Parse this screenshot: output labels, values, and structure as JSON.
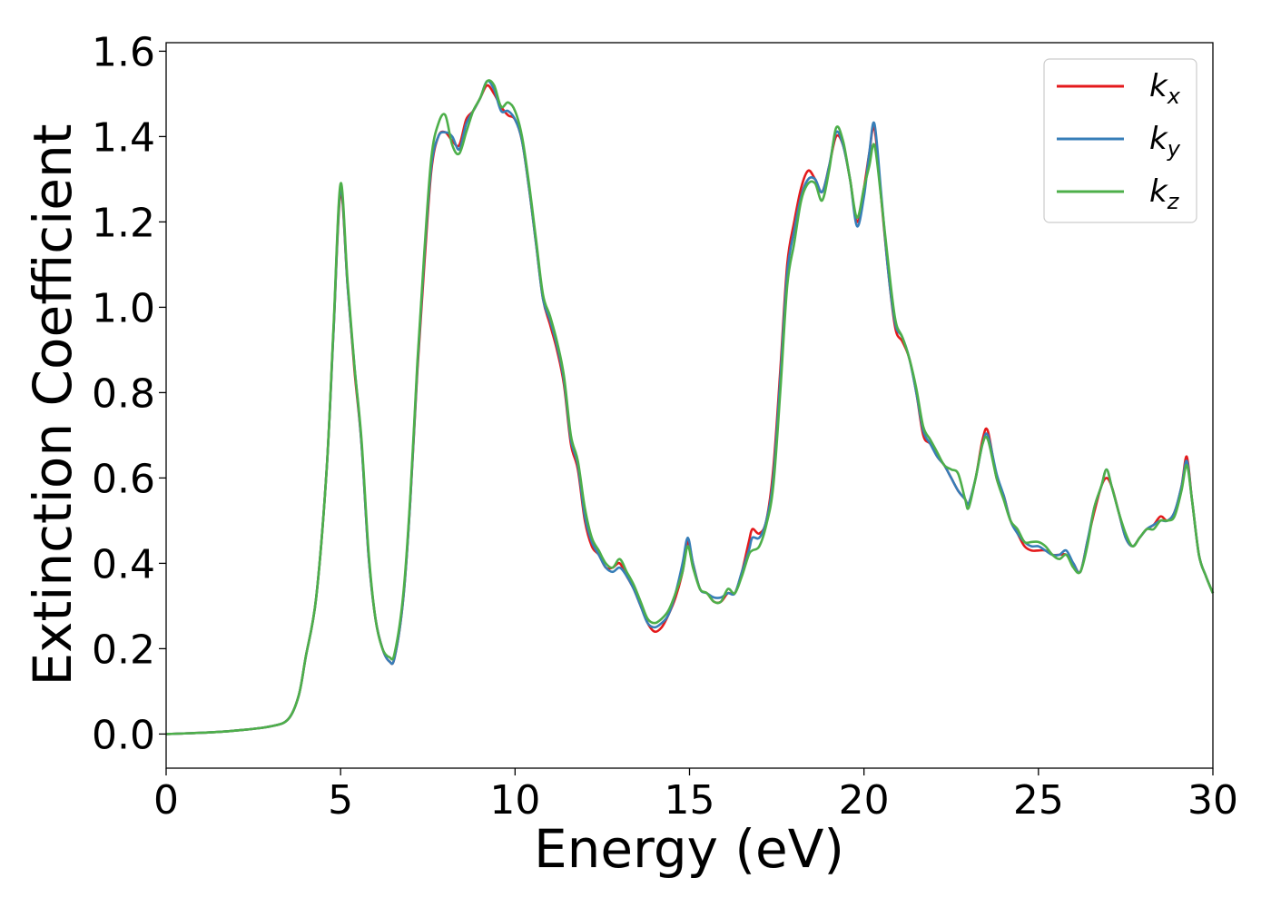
{
  "chart_data": {
    "type": "line",
    "title": "",
    "xlabel": "Energy (eV)",
    "ylabel": "Extinction Coefficient",
    "xlim": [
      0,
      30
    ],
    "ylim": [
      -0.08,
      1.62
    ],
    "xticks": [
      0,
      5,
      10,
      15,
      20,
      25,
      30
    ],
    "xtick_labels": [
      "0",
      "5",
      "10",
      "15",
      "20",
      "25",
      "30"
    ],
    "yticks": [
      0.0,
      0.2,
      0.4,
      0.6,
      0.8,
      1.0,
      1.2,
      1.4,
      1.6
    ],
    "ytick_labels": [
      "0.0",
      "0.2",
      "0.4",
      "0.6",
      "0.8",
      "1.0",
      "1.2",
      "1.4",
      "1.6"
    ],
    "grid": false,
    "legend_position": "top-right",
    "x": [
      0,
      1,
      2,
      3,
      3.5,
      3.8,
      4.0,
      4.3,
      4.6,
      4.8,
      5.0,
      5.2,
      5.4,
      5.6,
      5.8,
      6.0,
      6.2,
      6.4,
      6.55,
      6.8,
      7.0,
      7.2,
      7.4,
      7.6,
      7.8,
      8.0,
      8.2,
      8.4,
      8.6,
      8.8,
      9.0,
      9.2,
      9.4,
      9.6,
      9.8,
      10.0,
      10.2,
      10.4,
      10.6,
      10.8,
      11.0,
      11.2,
      11.4,
      11.6,
      11.8,
      12.0,
      12.2,
      12.4,
      12.6,
      12.8,
      13.0,
      13.2,
      13.4,
      13.6,
      13.8,
      14.0,
      14.2,
      14.4,
      14.6,
      14.8,
      14.95,
      15.1,
      15.3,
      15.5,
      15.7,
      15.9,
      16.1,
      16.3,
      16.5,
      16.7,
      16.8,
      17.0,
      17.2,
      17.4,
      17.6,
      17.8,
      18.0,
      18.2,
      18.4,
      18.6,
      18.8,
      19.0,
      19.2,
      19.4,
      19.6,
      19.8,
      20.0,
      20.15,
      20.3,
      20.5,
      20.7,
      20.9,
      21.1,
      21.3,
      21.5,
      21.7,
      21.9,
      22.1,
      22.3,
      22.5,
      22.7,
      22.9,
      23.0,
      23.2,
      23.4,
      23.55,
      23.8,
      24.0,
      24.2,
      24.4,
      24.6,
      24.8,
      25.0,
      25.2,
      25.4,
      25.6,
      25.8,
      26.0,
      26.2,
      26.4,
      26.6,
      26.8,
      26.95,
      27.1,
      27.3,
      27.5,
      27.7,
      27.9,
      28.1,
      28.3,
      28.5,
      28.7,
      28.9,
      29.1,
      29.25,
      29.4,
      29.6,
      29.8,
      30.0
    ],
    "series": [
      {
        "name": "k_x",
        "color": "#e41a1c",
        "values": [
          0.0,
          0.003,
          0.008,
          0.018,
          0.035,
          0.09,
          0.18,
          0.32,
          0.62,
          0.95,
          1.27,
          1.05,
          0.85,
          0.68,
          0.42,
          0.27,
          0.2,
          0.17,
          0.18,
          0.32,
          0.55,
          0.85,
          1.1,
          1.32,
          1.4,
          1.41,
          1.39,
          1.38,
          1.44,
          1.46,
          1.49,
          1.52,
          1.5,
          1.47,
          1.45,
          1.44,
          1.39,
          1.28,
          1.15,
          1.02,
          0.96,
          0.9,
          0.82,
          0.68,
          0.62,
          0.5,
          0.44,
          0.42,
          0.39,
          0.39,
          0.4,
          0.37,
          0.34,
          0.3,
          0.26,
          0.24,
          0.25,
          0.28,
          0.32,
          0.38,
          0.45,
          0.4,
          0.34,
          0.33,
          0.31,
          0.31,
          0.33,
          0.33,
          0.38,
          0.45,
          0.48,
          0.47,
          0.5,
          0.62,
          0.85,
          1.1,
          1.2,
          1.28,
          1.32,
          1.3,
          1.27,
          1.33,
          1.4,
          1.38,
          1.3,
          1.2,
          1.28,
          1.36,
          1.42,
          1.25,
          1.08,
          0.95,
          0.92,
          0.88,
          0.8,
          0.7,
          0.68,
          0.65,
          0.63,
          0.6,
          0.57,
          0.55,
          0.54,
          0.6,
          0.69,
          0.71,
          0.6,
          0.56,
          0.5,
          0.47,
          0.44,
          0.43,
          0.43,
          0.43,
          0.42,
          0.42,
          0.42,
          0.4,
          0.38,
          0.45,
          0.52,
          0.58,
          0.6,
          0.58,
          0.52,
          0.46,
          0.44,
          0.46,
          0.48,
          0.49,
          0.51,
          0.5,
          0.52,
          0.58,
          0.65,
          0.55,
          0.42,
          0.37,
          0.33
        ]
      },
      {
        "name": "k_y",
        "color": "#377eb8",
        "values": [
          0.0,
          0.003,
          0.008,
          0.018,
          0.035,
          0.09,
          0.18,
          0.32,
          0.62,
          0.95,
          1.28,
          1.05,
          0.86,
          0.68,
          0.42,
          0.27,
          0.2,
          0.17,
          0.18,
          0.32,
          0.55,
          0.86,
          1.12,
          1.33,
          1.4,
          1.41,
          1.4,
          1.37,
          1.43,
          1.46,
          1.49,
          1.53,
          1.51,
          1.46,
          1.46,
          1.44,
          1.39,
          1.28,
          1.15,
          1.02,
          0.97,
          0.91,
          0.83,
          0.69,
          0.63,
          0.51,
          0.45,
          0.42,
          0.39,
          0.38,
          0.39,
          0.37,
          0.34,
          0.3,
          0.26,
          0.25,
          0.26,
          0.28,
          0.33,
          0.4,
          0.46,
          0.4,
          0.34,
          0.33,
          0.32,
          0.32,
          0.33,
          0.33,
          0.38,
          0.43,
          0.46,
          0.46,
          0.5,
          0.6,
          0.83,
          1.08,
          1.18,
          1.26,
          1.3,
          1.3,
          1.27,
          1.33,
          1.41,
          1.38,
          1.3,
          1.19,
          1.26,
          1.36,
          1.43,
          1.26,
          1.08,
          0.96,
          0.93,
          0.88,
          0.8,
          0.71,
          0.68,
          0.65,
          0.63,
          0.6,
          0.57,
          0.55,
          0.54,
          0.6,
          0.68,
          0.7,
          0.61,
          0.56,
          0.5,
          0.47,
          0.45,
          0.44,
          0.44,
          0.43,
          0.42,
          0.42,
          0.43,
          0.4,
          0.38,
          0.45,
          0.53,
          0.58,
          0.62,
          0.58,
          0.52,
          0.46,
          0.44,
          0.46,
          0.48,
          0.49,
          0.5,
          0.5,
          0.52,
          0.58,
          0.64,
          0.55,
          0.42,
          0.37,
          0.33
        ]
      },
      {
        "name": "k_z",
        "color": "#4daf4a",
        "values": [
          0.0,
          0.003,
          0.008,
          0.018,
          0.035,
          0.09,
          0.18,
          0.32,
          0.62,
          0.96,
          1.29,
          1.06,
          0.86,
          0.69,
          0.43,
          0.27,
          0.2,
          0.18,
          0.19,
          0.33,
          0.56,
          0.87,
          1.13,
          1.35,
          1.43,
          1.45,
          1.38,
          1.36,
          1.41,
          1.46,
          1.49,
          1.53,
          1.52,
          1.47,
          1.48,
          1.46,
          1.4,
          1.29,
          1.16,
          1.03,
          0.98,
          0.92,
          0.84,
          0.7,
          0.64,
          0.53,
          0.46,
          0.43,
          0.4,
          0.39,
          0.41,
          0.38,
          0.35,
          0.31,
          0.27,
          0.26,
          0.27,
          0.29,
          0.33,
          0.38,
          0.44,
          0.39,
          0.34,
          0.33,
          0.31,
          0.31,
          0.34,
          0.33,
          0.37,
          0.42,
          0.43,
          0.44,
          0.49,
          0.58,
          0.8,
          1.05,
          1.15,
          1.25,
          1.29,
          1.29,
          1.25,
          1.32,
          1.42,
          1.39,
          1.3,
          1.21,
          1.28,
          1.33,
          1.38,
          1.25,
          1.1,
          0.97,
          0.93,
          0.88,
          0.81,
          0.72,
          0.69,
          0.66,
          0.63,
          0.62,
          0.61,
          0.55,
          0.53,
          0.6,
          0.68,
          0.69,
          0.6,
          0.55,
          0.5,
          0.48,
          0.45,
          0.45,
          0.45,
          0.44,
          0.42,
          0.41,
          0.42,
          0.39,
          0.38,
          0.44,
          0.53,
          0.58,
          0.62,
          0.58,
          0.52,
          0.47,
          0.44,
          0.46,
          0.48,
          0.48,
          0.5,
          0.5,
          0.51,
          0.57,
          0.63,
          0.55,
          0.42,
          0.37,
          0.33
        ]
      }
    ],
    "legend_entries": [
      {
        "symbol": "k",
        "subscript": "x"
      },
      {
        "symbol": "k",
        "subscript": "y"
      },
      {
        "symbol": "k",
        "subscript": "z"
      }
    ]
  }
}
